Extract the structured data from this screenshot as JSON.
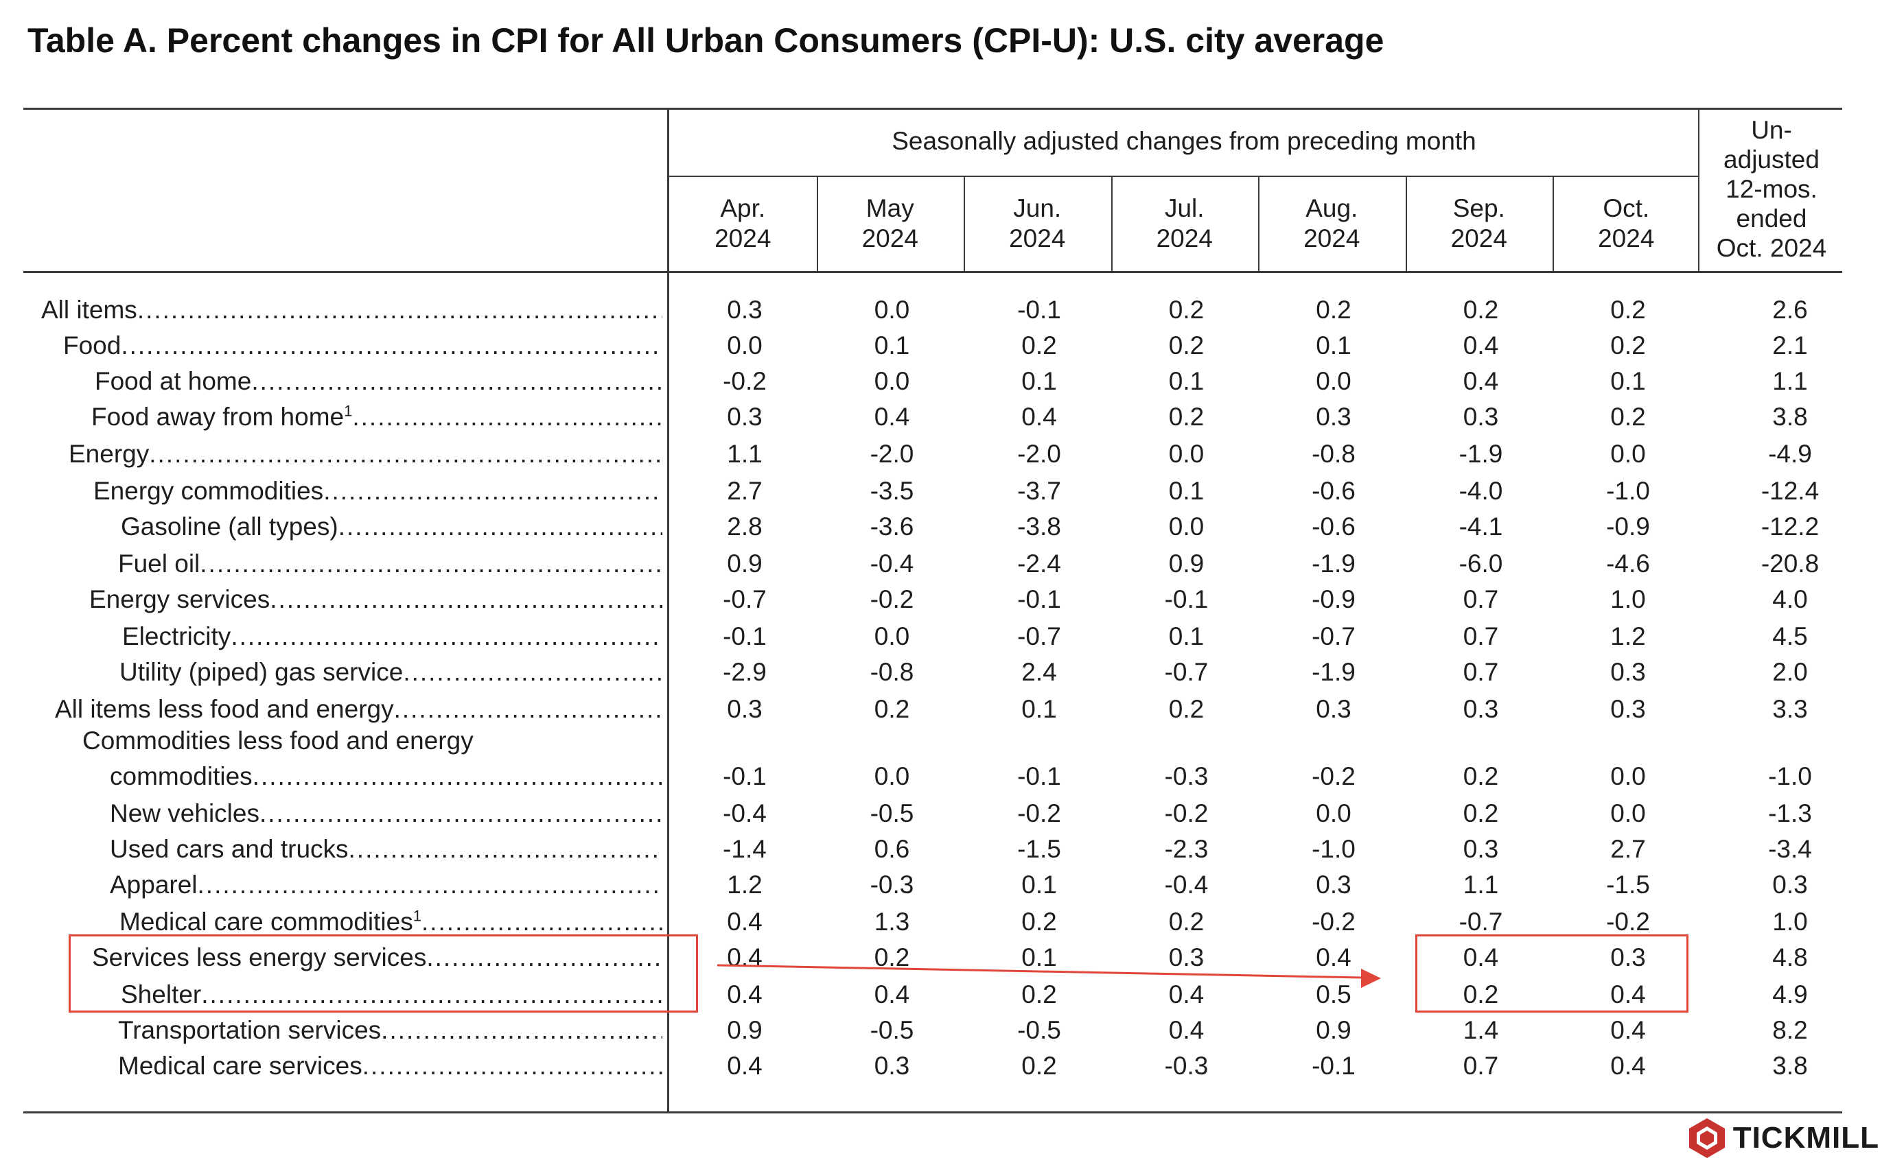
{
  "title": "Table A. Percent changes in CPI for All Urban Consumers (CPI-U): U.S. city average",
  "header": {
    "group_label": "Seasonally adjusted changes from preceding month",
    "months": [
      {
        "l1": "Apr.",
        "l2": "2024"
      },
      {
        "l1": "May",
        "l2": "2024"
      },
      {
        "l1": "Jun.",
        "l2": "2024"
      },
      {
        "l1": "Jul.",
        "l2": "2024"
      },
      {
        "l1": "Aug.",
        "l2": "2024"
      },
      {
        "l1": "Sep.",
        "l2": "2024"
      },
      {
        "l1": "Oct.",
        "l2": "2024"
      }
    ],
    "unadjusted": {
      "l1": "Un-",
      "l2": "adjusted",
      "l3": "12-mos.",
      "l4": "ended",
      "l5": "Oct. 2024"
    }
  },
  "rows": [
    {
      "label": "All items",
      "sup": "",
      "values": [
        "0.3",
        "0.0",
        "-0.1",
        "0.2",
        "0.2",
        "0.2",
        "0.2",
        "2.6"
      ]
    },
    {
      "label": "Food",
      "sup": "",
      "values": [
        "0.0",
        "0.1",
        "0.2",
        "0.2",
        "0.1",
        "0.4",
        "0.2",
        "2.1"
      ]
    },
    {
      "label": "Food at home",
      "sup": "",
      "values": [
        "-0.2",
        "0.0",
        "0.1",
        "0.1",
        "0.0",
        "0.4",
        "0.1",
        "1.1"
      ]
    },
    {
      "label": "Food away from home",
      "sup": "1",
      "values": [
        "0.3",
        "0.4",
        "0.4",
        "0.2",
        "0.3",
        "0.3",
        "0.2",
        "3.8"
      ]
    },
    {
      "label": "Energy",
      "sup": "",
      "values": [
        "1.1",
        "-2.0",
        "-2.0",
        "0.0",
        "-0.8",
        "-1.9",
        "0.0",
        "-4.9"
      ]
    },
    {
      "label": "Energy commodities",
      "sup": "",
      "values": [
        "2.7",
        "-3.5",
        "-3.7",
        "0.1",
        "-0.6",
        "-4.0",
        "-1.0",
        "-12.4"
      ]
    },
    {
      "label": "Gasoline (all types)",
      "sup": "",
      "values": [
        "2.8",
        "-3.6",
        "-3.8",
        "0.0",
        "-0.6",
        "-4.1",
        "-0.9",
        "-12.2"
      ]
    },
    {
      "label": "Fuel oil",
      "sup": "",
      "values": [
        "0.9",
        "-0.4",
        "-2.4",
        "0.9",
        "-1.9",
        "-6.0",
        "-4.6",
        "-20.8"
      ]
    },
    {
      "label": "Energy services",
      "sup": "",
      "values": [
        "-0.7",
        "-0.2",
        "-0.1",
        "-0.1",
        "-0.9",
        "0.7",
        "1.0",
        "4.0"
      ]
    },
    {
      "label": "Electricity",
      "sup": "",
      "values": [
        "-0.1",
        "0.0",
        "-0.7",
        "0.1",
        "-0.7",
        "0.7",
        "1.2",
        "4.5"
      ]
    },
    {
      "label": "Utility (piped) gas service",
      "sup": "",
      "values": [
        "-2.9",
        "-0.8",
        "2.4",
        "-0.7",
        "-1.9",
        "0.7",
        "0.3",
        "2.0"
      ]
    },
    {
      "label": "All items less food and energy",
      "sup": "",
      "values": [
        "0.3",
        "0.2",
        "0.1",
        "0.2",
        "0.3",
        "0.3",
        "0.3",
        "3.3"
      ]
    },
    {
      "label": "Commodities less food and energy",
      "label2": "commodities",
      "sup": "",
      "values": [
        "-0.1",
        "0.0",
        "-0.1",
        "-0.3",
        "-0.2",
        "0.2",
        "0.0",
        "-1.0"
      ]
    },
    {
      "label": "New vehicles",
      "sup": "",
      "values": [
        "-0.4",
        "-0.5",
        "-0.2",
        "-0.2",
        "0.0",
        "0.2",
        "0.0",
        "-1.3"
      ]
    },
    {
      "label": "Used cars and trucks",
      "sup": "",
      "values": [
        "-1.4",
        "0.6",
        "-1.5",
        "-2.3",
        "-1.0",
        "0.3",
        "2.7",
        "-3.4"
      ]
    },
    {
      "label": "Apparel",
      "sup": "",
      "values": [
        "1.2",
        "-0.3",
        "0.1",
        "-0.4",
        "0.3",
        "1.1",
        "-1.5",
        "0.3"
      ]
    },
    {
      "label": "Medical care commodities",
      "sup": "1",
      "values": [
        "0.4",
        "1.3",
        "0.2",
        "0.2",
        "-0.2",
        "-0.7",
        "-0.2",
        "1.0"
      ]
    },
    {
      "label": "Services less energy services",
      "sup": "",
      "values": [
        "0.4",
        "0.2",
        "0.1",
        "0.3",
        "0.4",
        "0.4",
        "0.3",
        "4.8"
      ]
    },
    {
      "label": "Shelter",
      "sup": "",
      "values": [
        "0.4",
        "0.4",
        "0.2",
        "0.4",
        "0.5",
        "0.2",
        "0.4",
        "4.9"
      ]
    },
    {
      "label": "Transportation services",
      "sup": "",
      "values": [
        "0.9",
        "-0.5",
        "-0.5",
        "0.4",
        "0.9",
        "1.4",
        "0.4",
        "8.2"
      ]
    },
    {
      "label": "Medical care services",
      "sup": "",
      "values": [
        "0.4",
        "0.3",
        "0.2",
        "-0.3",
        "-0.1",
        "0.7",
        "0.4",
        "3.8"
      ]
    }
  ],
  "dots": "................................................................................",
  "colors": {
    "highlight": "#e0473a",
    "rule": "#3a3a3a",
    "logo": "#c8322f"
  },
  "brand": {
    "name": "TICKMILL",
    "icon": "tickmill-hexagon-icon"
  }
}
